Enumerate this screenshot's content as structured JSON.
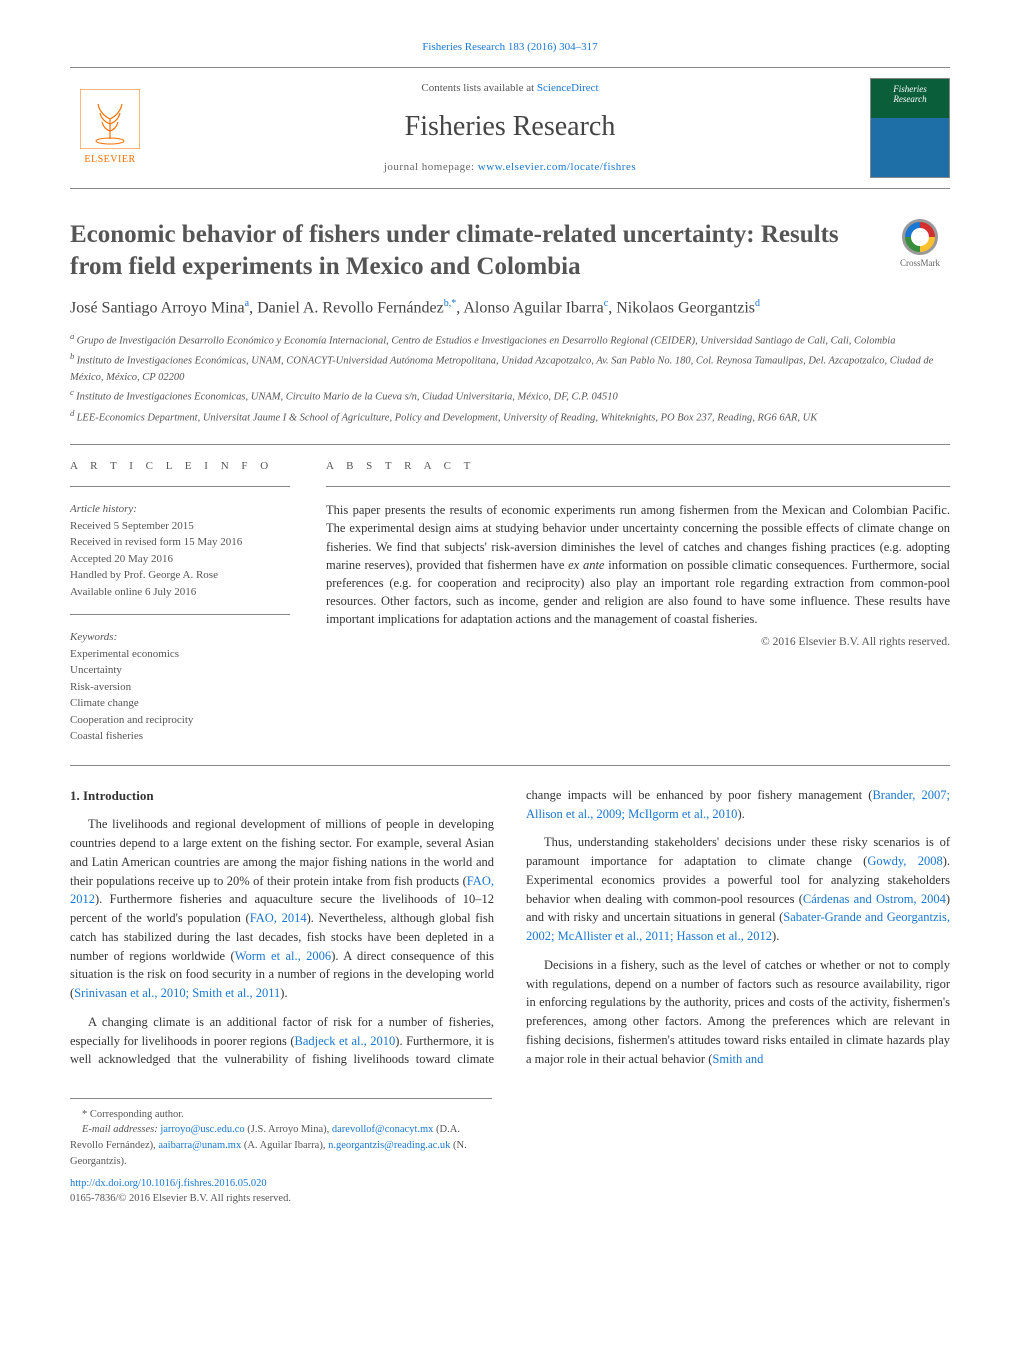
{
  "citation": "Fisheries Research 183 (2016) 304–317",
  "header": {
    "contents_prefix": "Contents lists available at ",
    "contents_link": "ScienceDirect",
    "journal": "Fisheries Research",
    "homepage_prefix": "journal homepage: ",
    "homepage_link": "www.elsevier.com/locate/fishres",
    "publisher": "ELSEVIER",
    "cover_text_1": "Fisheries",
    "cover_text_2": "Research"
  },
  "crossmark_label": "CrossMark",
  "title": "Economic behavior of fishers under climate-related uncertainty: Results from field experiments in Mexico and Colombia",
  "authors_html": "José Santiago Arroyo Mina<sup>a</sup>, Daniel A. Revollo Fernández<sup>b,*</sup>, Alonso Aguilar Ibarra<sup>c</sup>, Nikolaos Georgantzis<sup>d</sup>",
  "affiliations": [
    "a Grupo de Investigación Desarrollo Económico y Economía Internacional, Centro de Estudios e Investigaciones en Desarrollo Regional (CEIDER), Universidad Santiago de Cali, Cali, Colombia",
    "b Instituto de Investigaciones Económicas, UNAM, CONACYT-Universidad Autónoma Metropolitana, Unidad Azcapotzalco, Av. San Pablo No. 180, Col. Reynosa Tamaulipas, Del. Azcapotzalco, Ciudad de México, México, CP 02200",
    "c Instituto de Investigaciones Economicas, UNAM, Circuito Mario de la Cueva s/n, Ciudad Universitaria, México, DF, C.P. 04510",
    "d LEE-Economics Department, Universitat Jaume I & School of Agriculture, Policy and Development, University of Reading, Whiteknights, PO Box 237, Reading, RG6 6AR, UK"
  ],
  "info": {
    "heading": "A R T I C L E   I N F O",
    "history_head": "Article history:",
    "history": [
      "Received 5 September 2015",
      "Received in revised form 15 May 2016",
      "Accepted 20 May 2016",
      "Handled by Prof. George A. Rose",
      "Available online 6 July 2016"
    ],
    "keywords_head": "Keywords:",
    "keywords": [
      "Experimental economics",
      "Uncertainty",
      "Risk-aversion",
      "Climate change",
      "Cooperation and reciprocity",
      "Coastal fisheries"
    ]
  },
  "abstract": {
    "heading": "A B S T R A C T",
    "text": "This paper presents the results of economic experiments run among fishermen from the Mexican and Colombian Pacific. The experimental design aims at studying behavior under uncertainty concerning the possible effects of climate change on fisheries. We find that subjects' risk-aversion diminishes the level of catches and changes fishing practices (e.g. adopting marine reserves), provided that fishermen have ex ante information on possible climatic consequences. Furthermore, social preferences (e.g. for cooperation and reciprocity) also play an important role regarding extraction from common-pool resources. Other factors, such as income, gender and religion are also found to have some influence. These results have important implications for adaptation actions and the management of coastal fisheries.",
    "copyright": "© 2016 Elsevier B.V. All rights reserved."
  },
  "section1": {
    "head": "1. Introduction",
    "p1_pre": "The livelihoods and regional development of millions of people in developing countries depend to a large extent on the fishing sector. For example, several Asian and Latin American countries are among the major fishing nations in the world and their populations receive up to 20% of their protein intake from fish products (",
    "p1_ref1": "FAO, 2012",
    "p1_mid1": "). Furthermore fisheries and aquaculture secure the livelihoods of 10–12 percent of the world's population (",
    "p1_ref2": "FAO, 2014",
    "p1_mid2": "). Nevertheless, although global fish catch has stabilized during the last decades, fish stocks have been depleted in a number of regions worldwide (",
    "p1_ref3": "Worm et al., 2006",
    "p1_mid3": "). A direct consequence of this situation is the risk on food security in a number of regions in the developing world (",
    "p1_ref4": "Srinivasan et al., 2010; Smith et al., 2011",
    "p1_end": ").",
    "p2_pre": "A changing climate is an additional factor of risk for a number of fisheries, especially for livelihoods in poorer regions (",
    "p2_ref1": "Badjeck et al., 2010",
    "p2_mid1": "). Furthermore, it is well acknowledged that the vulnerability of fishing livelihoods toward climate change impacts will be enhanced by poor fishery management (",
    "p2_ref2": "Brander, 2007; Allison et al., 2009; McIlgorm et al., 2010",
    "p2_end": ").",
    "p3_pre": "Thus, understanding stakeholders' decisions under these risky scenarios is of paramount importance for adaptation to climate change (",
    "p3_ref1": "Gowdy, 2008",
    "p3_mid1": "). Experimental economics provides a powerful tool for analyzing stakeholders behavior when dealing with common-pool resources (",
    "p3_ref2": "Cárdenas and Ostrom, 2004",
    "p3_mid2": ") and with risky and uncertain situations in general (",
    "p3_ref3": "Sabater-Grande and Georgantzis, 2002; McAllister et al., 2011; Hasson et al., 2012",
    "p3_end": ").",
    "p4_pre": "Decisions in a fishery, such as the level of catches or whether or not to comply with regulations, depend on a number of factors such as resource availability, rigor in enforcing regulations by the authority, prices and costs of the activity, fishermen's preferences, among other factors. Among the preferences which are relevant in fishing decisions, fishermen's attitudes toward risks entailed in climate hazards play a major role in their actual behavior (",
    "p4_ref1": "Smith and"
  },
  "footnotes": {
    "corr": "* Corresponding author.",
    "email_label": "E-mail addresses: ",
    "emails": [
      {
        "addr": "jarroyo@usc.edu.co",
        "who": " (J.S. Arroyo Mina), "
      },
      {
        "addr": "darevollof@conacyt.mx",
        "who": " (D.A. Revollo Fernández), "
      },
      {
        "addr": "aaibarra@unam.mx",
        "who": " (A. Aguilar Ibarra), "
      },
      {
        "addr": "n.georgantzis@reading.ac.uk",
        "who": " (N. Georgantzis)."
      }
    ],
    "doi": "http://dx.doi.org/10.1016/j.fishres.2016.05.020",
    "issn_line": "0165-7836/© 2016 Elsevier B.V. All rights reserved."
  },
  "colors": {
    "link": "#1976d2",
    "publisher_orange": "#ff6f00",
    "rule": "#888888",
    "text": "#333333"
  }
}
